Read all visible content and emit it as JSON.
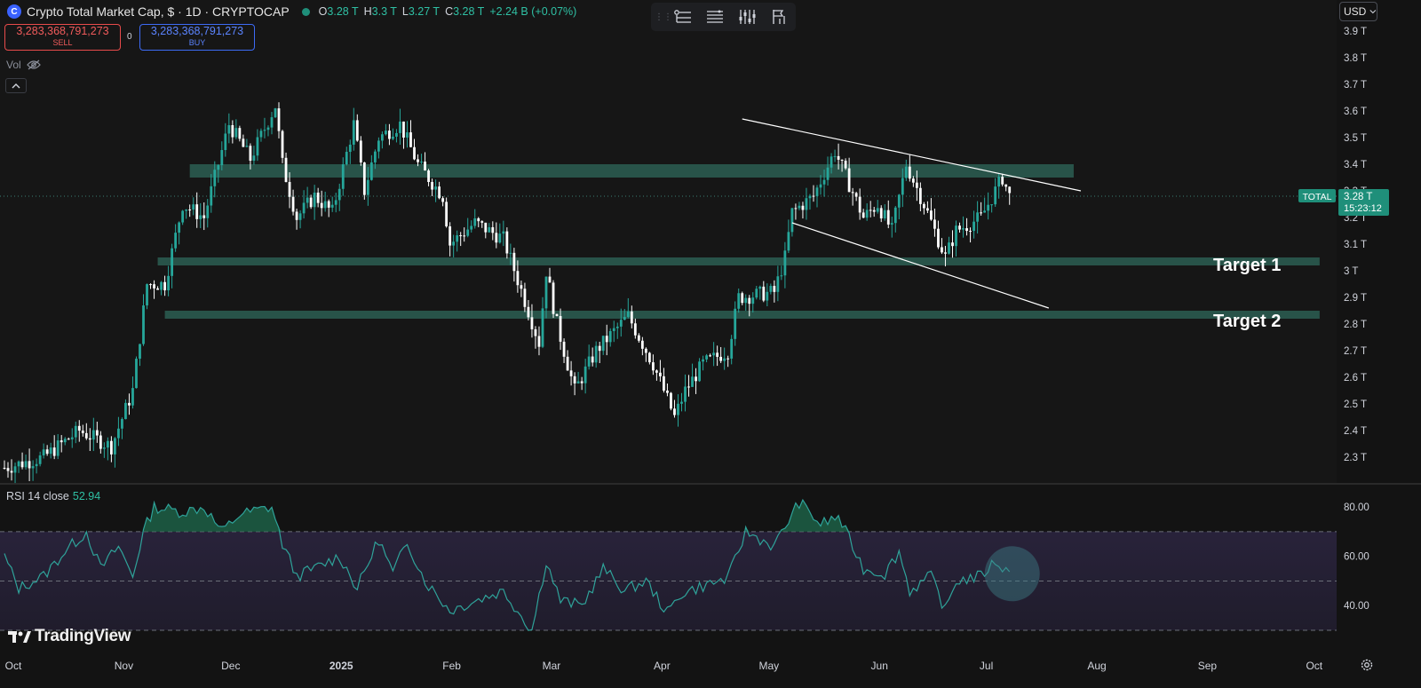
{
  "header": {
    "symbol_icon": "C",
    "title": "Crypto Total Market Cap, $ · 1D · CRYPTOCAP",
    "live_indicator_color": "#1f8f7a",
    "ohlc": {
      "o_key": "O",
      "o_val": "3.28 T",
      "h_key": "H",
      "h_val": "3.3 T",
      "l_key": "L",
      "l_val": "3.27 T",
      "c_key": "C",
      "c_val": "3.28 T",
      "change": "+2.24 B (+0.07%)"
    }
  },
  "trade": {
    "sell_value": "3,283,368,791,273",
    "sell_label": "SELL",
    "spread": "0",
    "buy_value": "3,283,368,791,273",
    "buy_label": "BUY"
  },
  "volume_label": "Vol",
  "collapse_icon": "chevron-up-icon",
  "toolbar": [
    "object-tree-icon",
    "data-window-icon",
    "indicators-settings-icon",
    "bar-replay-icon"
  ],
  "currency": "USD",
  "rsi": {
    "name": "RSI 14 close",
    "value": "52.94"
  },
  "watermark": "TradingView",
  "settings_icon": "gear-icon",
  "colors": {
    "background": "#131313",
    "up": "#26a69a",
    "down": "#ffffff",
    "zone": "#2c5e52",
    "rsi_line": "#2fa39a",
    "accent": "#2fc0a4"
  },
  "chart_data": [
    {
      "type": "candlestick",
      "title": "Crypto Total Market Cap",
      "ylabel": "",
      "y_unit": "T",
      "ylim": [
        2.2,
        3.95
      ],
      "y_ticks": [
        2.3,
        2.4,
        2.5,
        2.6,
        2.7,
        2.8,
        2.9,
        3.0,
        3.1,
        3.2,
        3.3,
        3.4,
        3.5,
        3.6,
        3.7,
        3.8,
        3.9
      ],
      "y_tick_labels": [
        "2.3 T",
        "2.4 T",
        "2.5 T",
        "2.6 T",
        "2.7 T",
        "2.8 T",
        "2.9 T",
        "3 T",
        "3.1 T",
        "3.2 T",
        "3.3 T",
        "3.4 T",
        "3.5 T",
        "3.6 T",
        "3.7 T",
        "3.8 T",
        "3.9 T"
      ],
      "x_ticks": [
        "Oct",
        "Nov",
        "Dec",
        "2025",
        "Feb",
        "Mar",
        "Apr",
        "May",
        "Jun",
        "Jul",
        "Aug",
        "Sep",
        "Oct"
      ],
      "x_range": [
        "2024-10-01",
        "2025-10-16"
      ],
      "last_price": {
        "symbol": "TOTAL",
        "value": "3.28 T",
        "countdown": "15:23:12",
        "y": 3.28
      },
      "path": [
        [
          "2024-10-01",
          2.26
        ],
        [
          "2024-10-12",
          2.3
        ],
        [
          "2024-10-22",
          2.4
        ],
        [
          "2024-10-31",
          2.34
        ],
        [
          "2024-11-06",
          2.55
        ],
        [
          "2024-11-10",
          2.95
        ],
        [
          "2024-11-15",
          2.95
        ],
        [
          "2024-11-20",
          3.25
        ],
        [
          "2024-11-26",
          3.2
        ],
        [
          "2024-12-03",
          3.55
        ],
        [
          "2024-12-09",
          3.42
        ],
        [
          "2024-12-16",
          3.62
        ],
        [
          "2024-12-18",
          3.4
        ],
        [
          "2024-12-22",
          3.2
        ],
        [
          "2024-12-27",
          3.28
        ],
        [
          "2025-01-01",
          3.22
        ],
        [
          "2025-01-07",
          3.55
        ],
        [
          "2025-01-10",
          3.3
        ],
        [
          "2025-01-14",
          3.5
        ],
        [
          "2025-01-20",
          3.55
        ],
        [
          "2025-01-25",
          3.4
        ],
        [
          "2025-02-01",
          3.28
        ],
        [
          "2025-02-03",
          3.1
        ],
        [
          "2025-02-10",
          3.18
        ],
        [
          "2025-02-18",
          3.12
        ],
        [
          "2025-02-25",
          2.85
        ],
        [
          "2025-02-28",
          2.73
        ],
        [
          "2025-03-02",
          3.0
        ],
        [
          "2025-03-05",
          2.8
        ],
        [
          "2025-03-10",
          2.55
        ],
        [
          "2025-03-16",
          2.7
        ],
        [
          "2025-03-25",
          2.83
        ],
        [
          "2025-04-01",
          2.65
        ],
        [
          "2025-04-07",
          2.45
        ],
        [
          "2025-04-10",
          2.55
        ],
        [
          "2025-04-15",
          2.65
        ],
        [
          "2025-04-22",
          2.7
        ],
        [
          "2025-04-25",
          2.9
        ],
        [
          "2025-05-05",
          2.92
        ],
        [
          "2025-05-08",
          3.05
        ],
        [
          "2025-05-10",
          3.22
        ],
        [
          "2025-05-16",
          3.28
        ],
        [
          "2025-05-22",
          3.45
        ],
        [
          "2025-05-30",
          3.2
        ],
        [
          "2025-06-03",
          3.25
        ],
        [
          "2025-06-07",
          3.15
        ],
        [
          "2025-06-11",
          3.4
        ],
        [
          "2025-06-16",
          3.25
        ],
        [
          "2025-06-22",
          3.05
        ],
        [
          "2025-06-25",
          3.15
        ],
        [
          "2025-07-02",
          3.2
        ],
        [
          "2025-07-08",
          3.35
        ],
        [
          "2025-07-10",
          3.28
        ]
      ],
      "zones": [
        {
          "from": "2024-11-22",
          "to": "2025-07-28",
          "y_low": 3.35,
          "y_high": 3.4
        },
        {
          "from": "2024-11-13",
          "to": "2025-10-05",
          "y_low": 3.02,
          "y_high": 3.05
        },
        {
          "from": "2024-11-15",
          "to": "2025-10-05",
          "y_low": 2.82,
          "y_high": 2.85
        }
      ],
      "trendlines": [
        {
          "from": [
            "2025-04-26",
            3.57
          ],
          "to": [
            "2025-07-30",
            3.3
          ]
        },
        {
          "from": [
            "2025-05-10",
            3.18
          ],
          "to": [
            "2025-07-21",
            2.86
          ]
        }
      ],
      "annotations": [
        {
          "text": "Target 1",
          "y": 3.02
        },
        {
          "text": "Target 2",
          "y": 2.81
        }
      ]
    },
    {
      "type": "line",
      "title": "RSI 14 close",
      "ylim": [
        25,
        90
      ],
      "y_ticks": [
        40,
        60,
        80
      ],
      "y_tick_labels": [
        "40.00",
        "60.00",
        "80.00"
      ],
      "bands": [
        30,
        50,
        70
      ],
      "current_value": 52.94,
      "path": [
        [
          "2024-10-01",
          60
        ],
        [
          "2024-10-05",
          47
        ],
        [
          "2024-10-12",
          52
        ],
        [
          "2024-10-18",
          62
        ],
        [
          "2024-10-24",
          70
        ],
        [
          "2024-10-28",
          55
        ],
        [
          "2024-11-02",
          64
        ],
        [
          "2024-11-06",
          52
        ],
        [
          "2024-11-09",
          70
        ],
        [
          "2024-11-12",
          80
        ],
        [
          "2024-11-20",
          78
        ],
        [
          "2024-11-26",
          80
        ],
        [
          "2024-12-01",
          70
        ],
        [
          "2024-12-06",
          77
        ],
        [
          "2024-12-15",
          80
        ],
        [
          "2024-12-18",
          65
        ],
        [
          "2024-12-22",
          52
        ],
        [
          "2024-12-27",
          55
        ],
        [
          "2025-01-03",
          60
        ],
        [
          "2025-01-08",
          47
        ],
        [
          "2025-01-14",
          67
        ],
        [
          "2025-01-18",
          53
        ],
        [
          "2025-01-22",
          66
        ],
        [
          "2025-01-27",
          50
        ],
        [
          "2025-02-03",
          38
        ],
        [
          "2025-02-10",
          42
        ],
        [
          "2025-02-18",
          46
        ],
        [
          "2025-02-23",
          36
        ],
        [
          "2025-02-26",
          30
        ],
        [
          "2025-03-02",
          58
        ],
        [
          "2025-03-06",
          42
        ],
        [
          "2025-03-12",
          40
        ],
        [
          "2025-03-18",
          55
        ],
        [
          "2025-03-24",
          46
        ],
        [
          "2025-03-30",
          50
        ],
        [
          "2025-04-05",
          37
        ],
        [
          "2025-04-09",
          45
        ],
        [
          "2025-04-15",
          48
        ],
        [
          "2025-04-22",
          51
        ],
        [
          "2025-04-27",
          70
        ],
        [
          "2025-05-05",
          64
        ],
        [
          "2025-05-08",
          72
        ],
        [
          "2025-05-12",
          82
        ],
        [
          "2025-05-18",
          73
        ],
        [
          "2025-05-23",
          76
        ],
        [
          "2025-05-30",
          55
        ],
        [
          "2025-06-05",
          53
        ],
        [
          "2025-06-09",
          62
        ],
        [
          "2025-06-12",
          46
        ],
        [
          "2025-06-18",
          52
        ],
        [
          "2025-06-22",
          38
        ],
        [
          "2025-06-25",
          50
        ],
        [
          "2025-07-02",
          52
        ],
        [
          "2025-07-06",
          58
        ],
        [
          "2025-07-10",
          53
        ]
      ]
    }
  ]
}
